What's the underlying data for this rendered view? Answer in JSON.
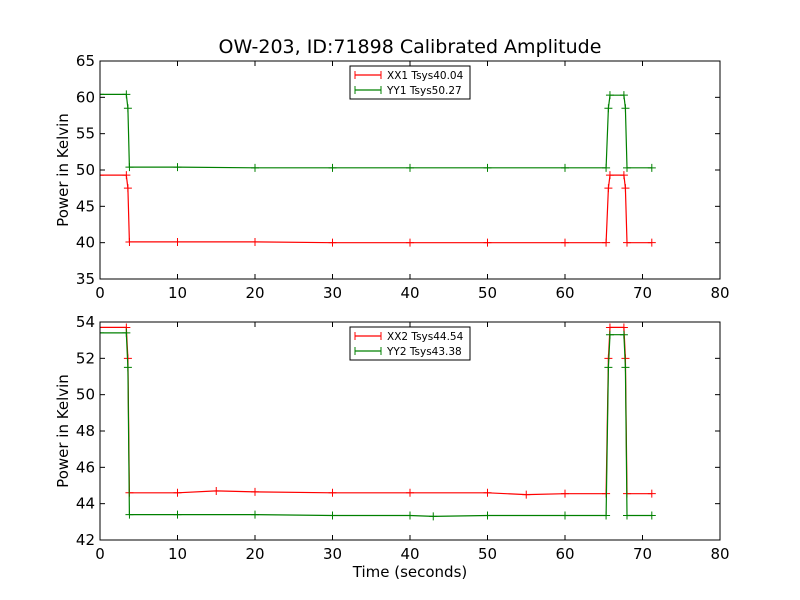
{
  "figure": {
    "title": "OW-203, ID:71898 Calibrated Amplitude",
    "xlabel": "Time (seconds)"
  },
  "colors": {
    "red": "#ff0000",
    "green": "#008000",
    "frame": "#000000",
    "background": "#ffffff"
  },
  "chart_data": [
    {
      "type": "line",
      "title": "OW-203, ID:71898 Calibrated Amplitude",
      "xlabel": "",
      "ylabel": "Power in Kelvin",
      "xlim": [
        0,
        80
      ],
      "ylim": [
        35,
        65
      ],
      "xticks": [
        "0",
        "10",
        "20",
        "30",
        "40",
        "50",
        "60",
        "70",
        "80"
      ],
      "yticks": [
        "35",
        "40",
        "45",
        "50",
        "55",
        "60",
        "65"
      ],
      "grid": false,
      "legend": "top-center",
      "marker": "+",
      "series": [
        {
          "name": "XX1 Tsys40.04",
          "color": "#ff0000",
          "points": [
            [
              0,
              49.3
            ],
            [
              3.4,
              49.3
            ],
            [
              3.6,
              47.5
            ],
            [
              3.8,
              40.1
            ],
            [
              10,
              40.1
            ],
            [
              20,
              40.1
            ],
            [
              30,
              40.0
            ],
            [
              40,
              40.0
            ],
            [
              50,
              40.0
            ],
            [
              60,
              40.0
            ],
            [
              65.3,
              40.0
            ],
            [
              65.6,
              47.5
            ],
            [
              65.8,
              49.3
            ],
            [
              67.6,
              49.3
            ],
            [
              67.8,
              47.5
            ],
            [
              68.0,
              40.0
            ],
            [
              71.2,
              40.0
            ]
          ]
        },
        {
          "name": "YY1 Tsys50.27",
          "color": "#008000",
          "points": [
            [
              0,
              60.4
            ],
            [
              3.4,
              60.4
            ],
            [
              3.6,
              58.5
            ],
            [
              3.8,
              50.4
            ],
            [
              10,
              50.4
            ],
            [
              20,
              50.3
            ],
            [
              30,
              50.3
            ],
            [
              40,
              50.3
            ],
            [
              50,
              50.3
            ],
            [
              60,
              50.3
            ],
            [
              65.3,
              50.3
            ],
            [
              65.6,
              58.5
            ],
            [
              65.8,
              60.3
            ],
            [
              67.6,
              60.3
            ],
            [
              67.8,
              58.5
            ],
            [
              68.0,
              50.3
            ],
            [
              71.2,
              50.3
            ]
          ]
        }
      ]
    },
    {
      "type": "line",
      "title": "",
      "xlabel": "Time (seconds)",
      "ylabel": "Power in Kelvin",
      "xlim": [
        0,
        80
      ],
      "ylim": [
        42,
        54
      ],
      "xticks": [
        "0",
        "10",
        "20",
        "30",
        "40",
        "50",
        "60",
        "70",
        "80"
      ],
      "yticks": [
        "42",
        "44",
        "46",
        "48",
        "50",
        "52",
        "54"
      ],
      "grid": false,
      "legend": "top-center",
      "marker": "+",
      "series": [
        {
          "name": "XX2 Tsys44.54",
          "color": "#ff0000",
          "points": [
            [
              0,
              53.7
            ],
            [
              3.4,
              53.7
            ],
            [
              3.6,
              52.0
            ],
            [
              3.8,
              44.6
            ],
            [
              10,
              44.6
            ],
            [
              15,
              44.7
            ],
            [
              20,
              44.65
            ],
            [
              30,
              44.6
            ],
            [
              40,
              44.6
            ],
            [
              50,
              44.6
            ],
            [
              55,
              44.5
            ],
            [
              60,
              44.55
            ],
            [
              65.3,
              44.55
            ],
            [
              65.6,
              52.0
            ],
            [
              65.8,
              53.7
            ],
            [
              67.6,
              53.7
            ],
            [
              67.8,
              52.0
            ],
            [
              68.0,
              44.55
            ],
            [
              71.2,
              44.55
            ]
          ]
        },
        {
          "name": "YY2 Tsys43.38",
          "color": "#008000",
          "points": [
            [
              0,
              53.4
            ],
            [
              3.4,
              53.4
            ],
            [
              3.6,
              51.5
            ],
            [
              3.8,
              43.4
            ],
            [
              10,
              43.4
            ],
            [
              20,
              43.4
            ],
            [
              30,
              43.35
            ],
            [
              40,
              43.35
            ],
            [
              43,
              43.3
            ],
            [
              50,
              43.35
            ],
            [
              60,
              43.35
            ],
            [
              65.3,
              43.35
            ],
            [
              65.6,
              51.5
            ],
            [
              65.8,
              53.3
            ],
            [
              67.6,
              53.3
            ],
            [
              67.8,
              51.5
            ],
            [
              68.0,
              43.35
            ],
            [
              71.2,
              43.35
            ]
          ]
        }
      ]
    }
  ]
}
